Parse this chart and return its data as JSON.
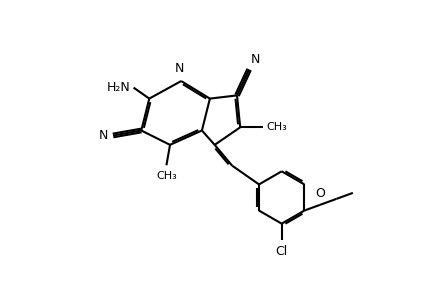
{
  "bg_color": "#ffffff",
  "lc": "#000000",
  "lw": 1.5,
  "dbo": 0.058,
  "dbs": 0.1,
  "fs": 9.0,
  "fsm": 8.0,
  "xlim": [
    0,
    10
  ],
  "ylim": [
    0,
    7
  ],
  "figsize": [
    4.22,
    2.9
  ],
  "dpi": 100
}
